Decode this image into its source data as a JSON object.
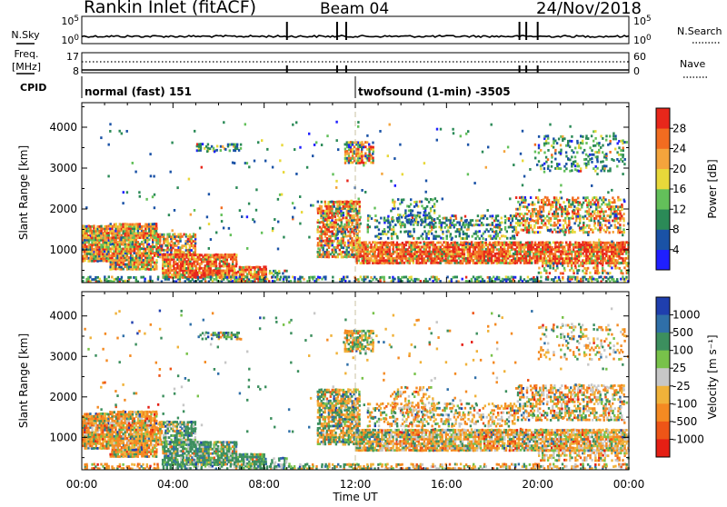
{
  "header": {
    "station": "Rankin Inlet (fitACF)",
    "beam": "Beam 04",
    "date": "24/Nov/2018"
  },
  "chart_data": {
    "type": "heatmap",
    "xlabel": "Time UT",
    "x_ticks": [
      "00:00",
      "04:00",
      "08:00",
      "12:00",
      "16:00",
      "20:00",
      "00:00"
    ],
    "xlim_hours": [
      0,
      24
    ],
    "annotation_marker_hour": 12,
    "top_strips": {
      "nsky": {
        "left_label": "N.Sky",
        "right_label": "N.Search",
        "left_ticks": [
          "10^5",
          "10^0"
        ],
        "right_ticks": [
          "10^5",
          "10^0"
        ],
        "spike_hours": [
          9.0,
          11.2,
          11.6,
          19.2,
          19.5,
          20.0
        ]
      },
      "freq": {
        "left_label": "Freq.",
        "left_unit": "[MHz]",
        "right_label": "Nave",
        "left_ticks": [
          "17",
          "8"
        ],
        "right_ticks": [
          "60",
          "0"
        ],
        "spike_hours": [
          9.0,
          11.2,
          11.6,
          19.2,
          19.5,
          20.0
        ]
      },
      "cpid": {
        "label": "CPID",
        "segments": [
          {
            "start_hour": 0,
            "text": "normal (fast) 151"
          },
          {
            "start_hour": 12,
            "text": "twofsound (1-min) -3505"
          }
        ]
      }
    },
    "panels": [
      {
        "id": "power",
        "ylabel": "Slant Range [km]",
        "ylim": [
          200,
          4600
        ],
        "yticks": [
          1000,
          2000,
          3000,
          4000
        ],
        "colorbar": {
          "label": "Power [dB]",
          "tick_labels": [
            "4",
            "8",
            "12",
            "16",
            "20",
            "24",
            "28"
          ],
          "colors": [
            "#1f1fff",
            "#1a52a6",
            "#2b8a57",
            "#63c05a",
            "#e8d83a",
            "#f4a43c",
            "#f26c20",
            "#e8271b"
          ]
        }
      },
      {
        "id": "velocity",
        "ylabel": "Slant Range [km]",
        "ylim": [
          200,
          4600
        ],
        "yticks": [
          1000,
          2000,
          3000,
          4000
        ],
        "colorbar": {
          "label": "Velocity [m s⁻¹]",
          "tick_labels": [
            "1000",
            "500",
            "100",
            "25",
            "-25",
            "-100",
            "-500",
            "-1000"
          ],
          "colors": [
            "#1f3fae",
            "#2f6fa8",
            "#3c8f5e",
            "#78c24a",
            "#c7c7c7",
            "#f0b23a",
            "#f48a22",
            "#ee5517",
            "#e51f14"
          ]
        }
      }
    ]
  }
}
